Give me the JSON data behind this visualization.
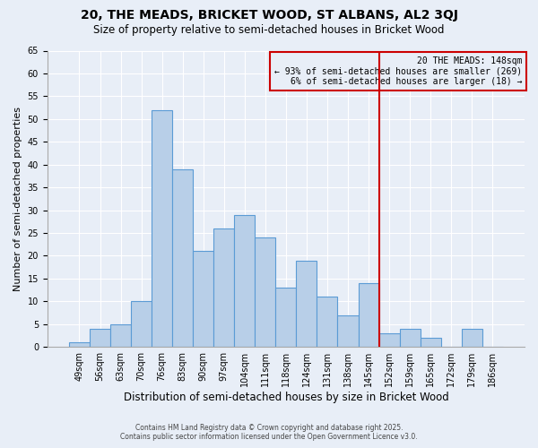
{
  "title": "20, THE MEADS, BRICKET WOOD, ST ALBANS, AL2 3QJ",
  "subtitle": "Size of property relative to semi-detached houses in Bricket Wood",
  "xlabel": "Distribution of semi-detached houses by size in Bricket Wood",
  "ylabel": "Number of semi-detached properties",
  "categories": [
    "49sqm",
    "56sqm",
    "63sqm",
    "70sqm",
    "76sqm",
    "83sqm",
    "90sqm",
    "97sqm",
    "104sqm",
    "111sqm",
    "118sqm",
    "124sqm",
    "131sqm",
    "138sqm",
    "145sqm",
    "152sqm",
    "159sqm",
    "165sqm",
    "172sqm",
    "179sqm",
    "186sqm"
  ],
  "values": [
    1,
    4,
    5,
    10,
    52,
    39,
    21,
    26,
    29,
    24,
    13,
    19,
    11,
    7,
    14,
    3,
    4,
    2,
    0,
    4,
    0
  ],
  "bar_color": "#b8cfe8",
  "bar_edge_color": "#5b9bd5",
  "vline_x_index": 14,
  "vline_color": "#cc0000",
  "annotation_title": "20 THE MEADS: 148sqm",
  "annotation_line1": "← 93% of semi-detached houses are smaller (269)",
  "annotation_line2": "6% of semi-detached houses are larger (18) →",
  "annotation_box_color": "#cc0000",
  "ylim": [
    0,
    65
  ],
  "yticks": [
    0,
    5,
    10,
    15,
    20,
    25,
    30,
    35,
    40,
    45,
    50,
    55,
    60,
    65
  ],
  "bg_color": "#e8eef7",
  "grid_color": "#ffffff",
  "footer1": "Contains HM Land Registry data © Crown copyright and database right 2025.",
  "footer2": "Contains public sector information licensed under the Open Government Licence v3.0."
}
